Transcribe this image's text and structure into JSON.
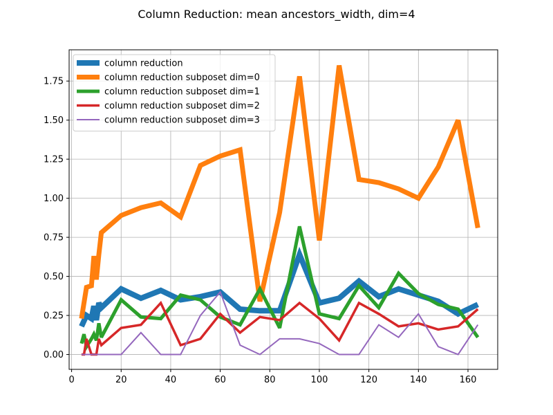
{
  "chart_data": {
    "type": "line",
    "title": "Column Reduction: mean ancestors_width, dim=4",
    "xlabel": "",
    "ylabel": "",
    "xlim": [
      -1,
      172
    ],
    "ylim": [
      -0.095,
      1.95
    ],
    "xticks": [
      0,
      20,
      40,
      60,
      80,
      100,
      120,
      140,
      160
    ],
    "yticks": [
      0.0,
      0.25,
      0.5,
      0.75,
      1.0,
      1.25,
      1.5,
      1.75
    ],
    "xtick_labels": [
      "0",
      "20",
      "40",
      "60",
      "80",
      "100",
      "120",
      "140",
      "160"
    ],
    "ytick_labels": [
      "0.00",
      "0.25",
      "0.50",
      "0.75",
      "1.00",
      "1.25",
      "1.50",
      "1.75"
    ],
    "grid": true,
    "legend_position": "top-left",
    "series": [
      {
        "name": "column reduction",
        "color": "#1f77b4",
        "linewidth": 8,
        "x": [
          4,
          6,
          8,
          9,
          10,
          11,
          12,
          20,
          28,
          36,
          44,
          52,
          60,
          68,
          76,
          84,
          92,
          100,
          108,
          116,
          124,
          132,
          140,
          148,
          156,
          164
        ],
        "y": [
          0.18,
          0.25,
          0.23,
          0.31,
          0.22,
          0.33,
          0.3,
          0.42,
          0.36,
          0.41,
          0.35,
          0.37,
          0.4,
          0.29,
          0.28,
          0.28,
          0.64,
          0.33,
          0.36,
          0.47,
          0.37,
          0.42,
          0.38,
          0.34,
          0.26,
          0.32
        ]
      },
      {
        "name": "column reduction subposet dim=0",
        "color": "#ff7f0e",
        "linewidth": 7,
        "x": [
          4,
          6,
          8,
          9,
          10,
          11,
          12,
          20,
          28,
          36,
          44,
          52,
          60,
          68,
          76,
          84,
          92,
          100,
          108,
          116,
          124,
          132,
          140,
          148,
          156,
          164
        ],
        "y": [
          0.23,
          0.43,
          0.44,
          0.63,
          0.48,
          0.64,
          0.78,
          0.89,
          0.94,
          0.97,
          0.88,
          1.21,
          1.27,
          1.31,
          0.34,
          0.91,
          1.78,
          0.73,
          1.85,
          1.12,
          1.1,
          1.06,
          1.0,
          1.2,
          1.5,
          0.81
        ]
      },
      {
        "name": "column reduction subposet dim=1",
        "color": "#2ca02c",
        "linewidth": 5,
        "x": [
          4,
          5,
          6,
          8,
          9,
          10,
          11,
          12,
          20,
          28,
          36,
          44,
          52,
          60,
          68,
          76,
          84,
          92,
          100,
          108,
          116,
          124,
          132,
          140,
          148,
          156,
          164
        ],
        "y": [
          0.07,
          0.13,
          0.05,
          0.1,
          0.13,
          0.09,
          0.2,
          0.11,
          0.35,
          0.24,
          0.23,
          0.38,
          0.35,
          0.24,
          0.19,
          0.42,
          0.17,
          0.82,
          0.26,
          0.23,
          0.44,
          0.3,
          0.52,
          0.39,
          0.32,
          0.29,
          0.11
        ]
      },
      {
        "name": "column reduction subposet dim=2",
        "color": "#d62728",
        "linewidth": 3.5,
        "x": [
          4,
          5,
          6,
          8,
          9,
          10,
          11,
          12,
          20,
          28,
          36,
          44,
          52,
          60,
          68,
          76,
          84,
          92,
          100,
          108,
          116,
          124,
          132,
          140,
          148,
          156,
          164
        ],
        "y": [
          0.0,
          0.0,
          0.1,
          0.0,
          0.0,
          0.0,
          0.1,
          0.06,
          0.17,
          0.19,
          0.33,
          0.06,
          0.1,
          0.26,
          0.14,
          0.24,
          0.22,
          0.33,
          0.23,
          0.09,
          0.33,
          0.26,
          0.18,
          0.2,
          0.16,
          0.18,
          0.29
        ]
      },
      {
        "name": "column reduction subposet dim=3",
        "color": "#9467bd",
        "linewidth": 2,
        "x": [
          4,
          6,
          8,
          9,
          10,
          11,
          12,
          20,
          28,
          36,
          44,
          52,
          60,
          68,
          76,
          84,
          92,
          100,
          108,
          116,
          124,
          132,
          140,
          148,
          156,
          164
        ],
        "y": [
          0.0,
          0.0,
          0.0,
          0.0,
          0.0,
          0.0,
          0.0,
          0.0,
          0.14,
          0.0,
          0.0,
          0.25,
          0.4,
          0.06,
          0.0,
          0.1,
          0.1,
          0.07,
          0.0,
          0.0,
          0.19,
          0.11,
          0.26,
          0.05,
          0.0,
          0.19
        ]
      }
    ]
  }
}
